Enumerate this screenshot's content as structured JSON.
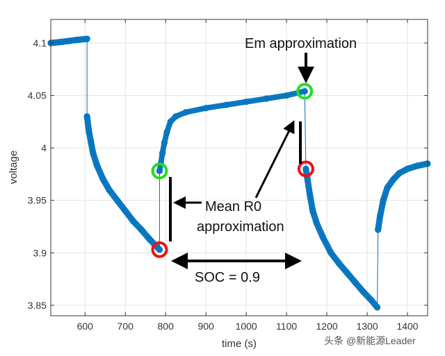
{
  "chart_data": {
    "type": "scatter",
    "xlabel": "time (s)",
    "ylabel": "voltage",
    "xlim": [
      515,
      1450
    ],
    "ylim": [
      3.84,
      4.1225
    ],
    "xticks": [
      600,
      700,
      800,
      900,
      1000,
      1100,
      1200,
      1300,
      1400
    ],
    "yticks": [
      3.85,
      3.9,
      3.95,
      4,
      4.05,
      4.1
    ],
    "grid": true,
    "color": "#0072BD",
    "segments": [
      [
        [
          515,
          4.1
        ],
        [
          540,
          4.101
        ],
        [
          560,
          4.102
        ],
        [
          580,
          4.103
        ],
        [
          605,
          4.104
        ]
      ],
      [
        [
          605,
          4.03
        ],
        [
          610,
          4.015
        ],
        [
          615,
          4.005
        ],
        [
          620,
          3.995
        ],
        [
          630,
          3.983
        ],
        [
          645,
          3.97
        ],
        [
          660,
          3.96
        ],
        [
          680,
          3.95
        ],
        [
          700,
          3.94
        ],
        [
          720,
          3.93
        ],
        [
          740,
          3.922
        ],
        [
          760,
          3.913
        ],
        [
          775,
          3.907
        ],
        [
          785,
          3.903
        ]
      ],
      [
        [
          785,
          3.978
        ],
        [
          788,
          3.985
        ],
        [
          792,
          3.995
        ],
        [
          797,
          4.005
        ],
        [
          803,
          4.015
        ],
        [
          812,
          4.025
        ],
        [
          825,
          4.03
        ],
        [
          850,
          4.034
        ],
        [
          900,
          4.038
        ],
        [
          950,
          4.041
        ],
        [
          1000,
          4.044
        ],
        [
          1050,
          4.047
        ],
        [
          1100,
          4.05
        ],
        [
          1145,
          4.054
        ]
      ],
      [
        [
          1148,
          3.98
        ],
        [
          1152,
          3.97
        ],
        [
          1158,
          3.955
        ],
        [
          1165,
          3.94
        ],
        [
          1175,
          3.928
        ],
        [
          1190,
          3.915
        ],
        [
          1210,
          3.9
        ],
        [
          1230,
          3.89
        ],
        [
          1250,
          3.881
        ],
        [
          1270,
          3.872
        ],
        [
          1290,
          3.863
        ],
        [
          1310,
          3.855
        ],
        [
          1325,
          3.848
        ]
      ],
      [
        [
          1327,
          3.922
        ],
        [
          1332,
          3.935
        ],
        [
          1340,
          3.95
        ],
        [
          1350,
          3.962
        ],
        [
          1365,
          3.97
        ],
        [
          1380,
          3.976
        ],
        [
          1400,
          3.98
        ],
        [
          1425,
          3.983
        ],
        [
          1450,
          3.985
        ]
      ]
    ],
    "highlights": [
      {
        "x": 785,
        "y": 3.978,
        "color": "#22dd22"
      },
      {
        "x": 1145,
        "y": 4.054,
        "color": "#22dd22"
      },
      {
        "x": 785,
        "y": 3.903,
        "color": "#ee1111"
      },
      {
        "x": 1148,
        "y": 3.98,
        "color": "#ee1111"
      }
    ],
    "annotations": {
      "em": "Em approximation",
      "r0_line1": "Mean R0",
      "r0_line2": "approximation",
      "soc": "SOC = 0.9"
    }
  },
  "watermark": "头条 @新能源Leader"
}
